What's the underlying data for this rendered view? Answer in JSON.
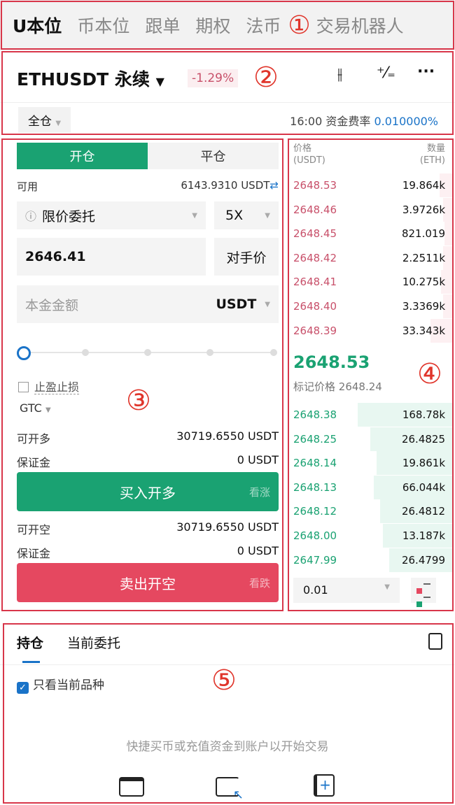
{
  "top_tabs": [
    "U本位",
    "币本位",
    "跟单",
    "期权",
    "法币",
    "交易机器人"
  ],
  "header": {
    "symbol": "ETHUSDT 永续",
    "change": "-1.29%",
    "margin_mode": "全仓",
    "funding_time": "16:00",
    "funding_label": "资金费率",
    "funding_rate": "0.010000%"
  },
  "order": {
    "tab_open": "开仓",
    "tab_close": "平仓",
    "avail_label": "可用",
    "avail_value": "6143.9310 USDT",
    "order_type": "限价委托",
    "leverage": "5X",
    "price": "2646.41",
    "counter_price": "对手价",
    "amount_placeholder": "本金金额",
    "amount_unit": "USDT",
    "slider_percent": 0,
    "tpsl": "止盈止损",
    "tif": "GTC",
    "long_max_label": "可开多",
    "long_max": "30719.6550 USDT",
    "long_margin_label": "保证金",
    "long_margin": "0 USDT",
    "buy_label": "买入开多",
    "buy_hint": "看涨",
    "short_max_label": "可开空",
    "short_max": "30719.6550 USDT",
    "short_margin_label": "保证金",
    "short_margin": "0 USDT",
    "sell_label": "卖出开空",
    "sell_hint": "看跌"
  },
  "book": {
    "price_h": "价格",
    "price_unit": "(USDT)",
    "qty_h": "数量",
    "qty_unit": "(ETH)",
    "asks": [
      [
        "2648.53",
        "19.864k"
      ],
      [
        "2648.46",
        "3.9726k"
      ],
      [
        "2648.45",
        "821.019"
      ],
      [
        "2648.42",
        "2.2511k"
      ],
      [
        "2648.41",
        "10.275k"
      ],
      [
        "2648.40",
        "3.3369k"
      ],
      [
        "2648.39",
        "33.343k"
      ]
    ],
    "last": "2648.53",
    "mark_label": "标记价格",
    "mark": "2648.24",
    "bids": [
      [
        "2648.38",
        "168.78k"
      ],
      [
        "2648.25",
        "26.4825"
      ],
      [
        "2648.14",
        "19.861k"
      ],
      [
        "2648.13",
        "66.044k"
      ],
      [
        "2648.12",
        "26.4812"
      ],
      [
        "2648.00",
        "13.187k"
      ],
      [
        "2647.99",
        "26.4799"
      ]
    ],
    "precision": "0.01"
  },
  "positions": {
    "tab1": "持仓",
    "tab2": "当前委托",
    "only_current": "只看当前品种",
    "empty": "快捷买币或充值资金到账户以开始交易"
  },
  "annotations": [
    "①",
    "②",
    "③",
    "④",
    "⑤"
  ],
  "colors": {
    "green": "#1aa272",
    "red": "#e54860",
    "blue": "#1a73c8"
  }
}
